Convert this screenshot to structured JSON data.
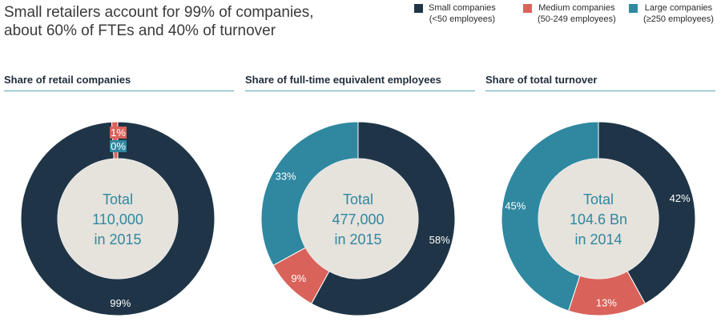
{
  "title": {
    "line1": "Small retailers account for 99% of companies,",
    "line2": "about 60% of FTEs and 40% of turnover"
  },
  "legend": [
    {
      "line1": "Small companies",
      "line2": "(<50 employees)",
      "color": "#1f3547"
    },
    {
      "line1": "Medium companies",
      "line2": "(50-249 employees)",
      "color": "#d9635a"
    },
    {
      "line1": "Large companies",
      "line2": "(≥250 employees)",
      "color": "#2f88a0"
    }
  ],
  "chart_data": [
    {
      "type": "pie",
      "title": "Share of retail companies",
      "categories": [
        "Small companies",
        "Medium companies",
        "Large companies"
      ],
      "values": [
        99,
        1,
        0
      ],
      "labels": [
        "99%",
        "1%",
        "0%"
      ],
      "center": {
        "line1": "Total",
        "line2": "110,000",
        "line3": "in 2015"
      }
    },
    {
      "type": "pie",
      "title": "Share of full-time equivalent employees",
      "categories": [
        "Small companies",
        "Medium companies",
        "Large companies"
      ],
      "values": [
        58,
        9,
        33
      ],
      "labels": [
        "58%",
        "9%",
        "33%"
      ],
      "center": {
        "line1": "Total",
        "line2": "477,000",
        "line3": "in 2015"
      }
    },
    {
      "type": "pie",
      "title": "Share of total turnover",
      "categories": [
        "Small companies",
        "Medium companies",
        "Large companies"
      ],
      "values": [
        42,
        13,
        45
      ],
      "labels": [
        "42%",
        "13%",
        "45%"
      ],
      "center": {
        "line1": "Total",
        "line2": "104.6 Bn",
        "line3": "in 2014"
      }
    }
  ],
  "colors": {
    "small": "#1f3547",
    "medium": "#d9635a",
    "large": "#2f88a0",
    "hole": "#e6e2dc",
    "center_text": "#2f88a0",
    "rule": "#5aa3b3"
  }
}
